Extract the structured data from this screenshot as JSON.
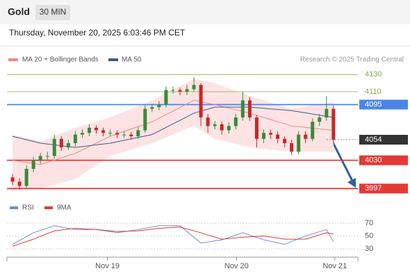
{
  "header": {
    "title": "Gold",
    "interval": "30 MIN",
    "timestamp": "Thursday, November 20, 2025 6:03:46 PM CET",
    "credit": "Research © 2025 Trading Central"
  },
  "chart_data": [
    {
      "type": "candlestick",
      "open": [
        4010,
        4005,
        4000,
        4020,
        4030,
        4035,
        4035,
        4055,
        4045,
        4050,
        4060,
        4062,
        4068,
        4065,
        4062,
        4062,
        4060,
        4060,
        4058,
        4065,
        4090,
        4092,
        4095,
        4112,
        4112,
        4110,
        4113,
        4118,
        4080,
        4070,
        4072,
        4065,
        4070,
        4080,
        4100,
        4080,
        4055,
        4062,
        4060,
        4055,
        4050,
        4040,
        4060,
        4055,
        4075,
        4080,
        4090
      ],
      "high": [
        4014,
        4009,
        4024,
        4034,
        4039,
        4040,
        4060,
        4058,
        4054,
        4064,
        4066,
        4072,
        4071,
        4068,
        4066,
        4065,
        4064,
        4063,
        4069,
        4094,
        4096,
        4099,
        4116,
        4116,
        4115,
        4118,
        4127,
        4120,
        4084,
        4076,
        4075,
        4074,
        4084,
        4110,
        4104,
        4083,
        4066,
        4066,
        4064,
        4058,
        4054,
        4064,
        4064,
        4079,
        4084,
        4105,
        4094
      ],
      "low": [
        4001,
        3996,
        3997,
        4016,
        4026,
        4030,
        4032,
        4041,
        4042,
        4046,
        4056,
        4058,
        4061,
        4058,
        4058,
        4056,
        4056,
        4054,
        4055,
        4062,
        4086,
        4088,
        4092,
        4108,
        4106,
        4106,
        4110,
        4070,
        4062,
        4066,
        4060,
        4061,
        4066,
        4076,
        4076,
        4045,
        4050,
        4055,
        4050,
        4045,
        4036,
        4037,
        4050,
        4052,
        4070,
        4076,
        4050
      ],
      "close": [
        4005,
        4000,
        4020,
        4030,
        4035,
        4035,
        4055,
        4045,
        4050,
        4060,
        4062,
        4068,
        4065,
        4062,
        4062,
        4060,
        4060,
        4058,
        4065,
        4090,
        4092,
        4095,
        4112,
        4112,
        4110,
        4113,
        4118,
        4080,
        4070,
        4072,
        4065,
        4070,
        4080,
        4100,
        4080,
        4055,
        4062,
        4060,
        4055,
        4050,
        4040,
        4060,
        4055,
        4075,
        4080,
        4090,
        4054
      ],
      "up_color": "#3a8a3a",
      "down_color": "#c62828",
      "ma20": {
        "name": "MA 20 + Bollinger Bands",
        "color": "#f08a8a",
        "band_color": "#fde3e3",
        "x": [
          0,
          4,
          9,
          14,
          20,
          26,
          29,
          34,
          40,
          46
        ],
        "values": [
          4030,
          4025,
          4038,
          4058,
          4075,
          4100,
          4095,
          4085,
          4070,
          4065
        ],
        "upper": [
          4060,
          4052,
          4068,
          4080,
          4100,
          4125,
          4120,
          4105,
          4090,
          4098
        ],
        "lower": [
          3995,
          3997,
          4008,
          4035,
          4050,
          4070,
          4055,
          4045,
          4040,
          4040
        ]
      },
      "ma50": {
        "name": "MA 50",
        "color": "#3b5a8f",
        "x": [
          0,
          4,
          9,
          14,
          20,
          26,
          29,
          34,
          40,
          46
        ],
        "values": [
          4058,
          4050,
          4045,
          4050,
          4060,
          4085,
          4092,
          4092,
          4088,
          4080
        ]
      },
      "levels": [
        {
          "value": 4130,
          "color": "#7cb342",
          "style": "text"
        },
        {
          "value": 4110,
          "color": "#7cb342",
          "style": "text"
        },
        {
          "value": 4095,
          "color": "#4a86e8",
          "style": "box"
        },
        {
          "value": 4054,
          "color": "#333333",
          "style": "box-dashed"
        },
        {
          "value": 4030,
          "color": "#e53935",
          "style": "box"
        },
        {
          "value": 3997,
          "color": "#e53935",
          "style": "box"
        }
      ],
      "ylim": [
        3994,
        4140
      ],
      "xlim": [
        -0.8,
        49.5
      ],
      "xticks": [
        {
          "value": 13.6,
          "label": "Nov 19"
        },
        {
          "value": 32.1,
          "label": "Nov 20"
        },
        {
          "value": 46.2,
          "label": "Nov 21"
        }
      ]
    },
    {
      "type": "line",
      "x": [
        0,
        3,
        6,
        9,
        12,
        15,
        18,
        21,
        24,
        27,
        30,
        33,
        36,
        39,
        42,
        45,
        46
      ],
      "series": [
        {
          "name": "RSI",
          "color": "#6b8fd6",
          "values": [
            37,
            55,
            66,
            60,
            60,
            55,
            60,
            66,
            66,
            39,
            44,
            55,
            44,
            37,
            50,
            60,
            41
          ]
        },
        {
          "name": "9MA",
          "color": "#e53935",
          "values": [
            34,
            45,
            58,
            62,
            60,
            57,
            58,
            62,
            64,
            55,
            45,
            48,
            50,
            45,
            45,
            55,
            53
          ]
        }
      ],
      "ylim": [
        17,
        82
      ],
      "yticks": [
        30,
        50,
        70
      ],
      "grid": true
    }
  ]
}
